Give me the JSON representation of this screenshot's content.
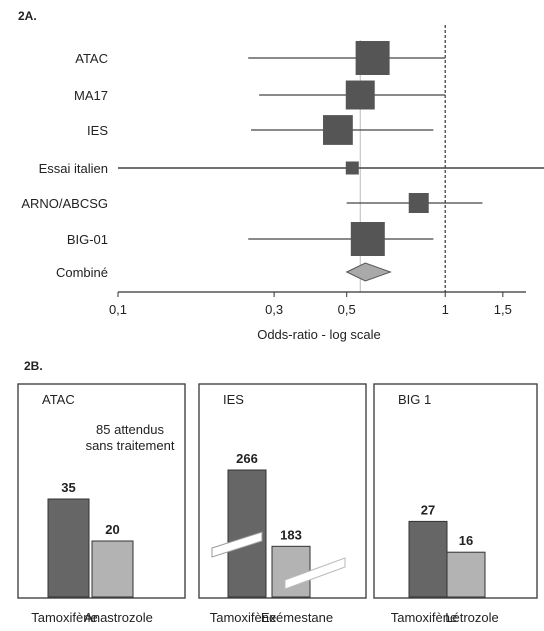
{
  "chart_data": [
    {
      "id": "2A",
      "type": "forest",
      "panel_label": "2A.",
      "xlabel": "Odds-ratio - log scale",
      "xscale": "log",
      "xlim": [
        0.1,
        1.6
      ],
      "reference_line": 1,
      "center_line": 0.55,
      "ticks": [
        {
          "value": 0.1,
          "label": "0,1"
        },
        {
          "value": 0.3,
          "label": "0,3"
        },
        {
          "value": 0.5,
          "label": "0,5"
        },
        {
          "value": 1,
          "label": "1"
        },
        {
          "value": 1.5,
          "label": "1,5"
        }
      ],
      "rows": [
        {
          "label": "ATAC",
          "or": 0.6,
          "lo": 0.25,
          "hi": 1.0,
          "weight": 1.0
        },
        {
          "label": "MA17",
          "or": 0.55,
          "lo": 0.27,
          "hi": 1.0,
          "weight": 0.82
        },
        {
          "label": "IES",
          "or": 0.47,
          "lo": 0.255,
          "hi": 0.92,
          "weight": 0.85
        },
        {
          "label": "Essai italien",
          "or": 0.52,
          "lo": 0.1,
          "hi": 1.6,
          "weight": 0.25
        },
        {
          "label": "ARNO/ABCSG",
          "or": 0.83,
          "lo": 0.5,
          "hi": 1.3,
          "weight": 0.5
        },
        {
          "label": "BIG-01",
          "or": 0.58,
          "lo": 0.25,
          "hi": 0.92,
          "weight": 1.0
        }
      ],
      "combined": {
        "label": "Combiné",
        "or": 0.57,
        "lo": 0.5,
        "hi": 0.68
      }
    },
    {
      "id": "2B",
      "type": "bar",
      "panel_label": "2B.",
      "panels": [
        {
          "title": "ATAC",
          "note_line1": "85 attendus",
          "note_line2": "sans traitement",
          "categories": [
            "Tamoxifène",
            "Anastrozole"
          ],
          "values": [
            35,
            20
          ],
          "broken": false
        },
        {
          "title": "IES",
          "categories": [
            "Tamoxifène",
            "Exémestane"
          ],
          "values": [
            266,
            183
          ],
          "broken": true
        },
        {
          "title": "BIG 1",
          "categories": [
            "Tamoxifène",
            "Létrozole"
          ],
          "values": [
            27,
            16
          ],
          "broken": false
        }
      ],
      "colors": {
        "first": "#666666",
        "second": "#b3b3b3",
        "marker": "#555555",
        "diamond": "#a9a9a9"
      }
    }
  ]
}
